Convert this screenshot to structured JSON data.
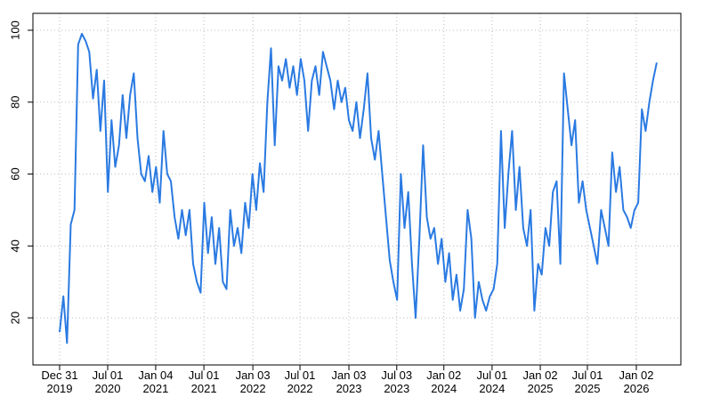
{
  "chart_data": {
    "type": "line",
    "color": "#2a7ae2",
    "grid": true,
    "values": [
      16,
      26,
      13,
      46,
      50,
      96,
      99,
      97,
      94,
      81,
      89,
      72,
      86,
      55,
      75,
      62,
      68,
      82,
      70,
      82,
      88,
      70,
      60,
      58,
      65,
      55,
      62,
      52,
      72,
      60,
      58,
      48,
      42,
      50,
      43,
      50,
      35,
      30,
      27,
      52,
      38,
      48,
      35,
      45,
      30,
      28,
      50,
      40,
      45,
      38,
      52,
      45,
      60,
      50,
      63,
      55,
      80,
      95,
      68,
      90,
      86,
      92,
      84,
      90,
      82,
      92,
      86,
      72,
      86,
      90,
      82,
      94,
      90,
      86,
      78,
      86,
      80,
      84,
      75,
      72,
      80,
      70,
      78,
      88,
      70,
      64,
      72,
      60,
      48,
      36,
      30,
      25,
      60,
      45,
      55,
      35,
      20,
      42,
      68,
      48,
      42,
      45,
      35,
      42,
      30,
      38,
      25,
      32,
      22,
      28,
      50,
      42,
      20,
      30,
      25,
      22,
      26,
      28,
      35,
      72,
      45,
      60,
      72,
      50,
      62,
      45,
      40,
      50,
      22,
      35,
      32,
      45,
      40,
      55,
      58,
      35,
      88,
      78,
      68,
      75,
      52,
      58,
      50,
      45,
      40,
      35,
      50,
      45,
      40,
      66,
      55,
      62,
      50,
      48,
      45,
      50,
      52,
      78,
      72,
      80,
      86,
      91
    ],
    "xlim": [
      -7.2,
      167.5
    ],
    "xticks": [
      {
        "value": 0,
        "label": "Dec 31\n2019"
      },
      {
        "value": 12.96,
        "label": "Jul 01\n2020"
      },
      {
        "value": 25.9,
        "label": "Jan 04\n2021"
      },
      {
        "value": 38.9,
        "label": "Jul 01\n2021"
      },
      {
        "value": 52.1,
        "label": "Jan 03\n2022"
      },
      {
        "value": 64.8,
        "label": "Jul 01\n2022"
      },
      {
        "value": 78.0,
        "label": "Jan 03\n2023"
      },
      {
        "value": 90.9,
        "label": "Jul 03\n2023"
      },
      {
        "value": 103.6,
        "label": "Jan 02\n2024"
      },
      {
        "value": 116.6,
        "label": "Jul 01\n2024"
      },
      {
        "value": 129.6,
        "label": "Jan 02\n2025"
      },
      {
        "value": 142.3,
        "label": "Jul 01\n2025"
      },
      {
        "value": 155.5,
        "label": "Jan 02\n2026"
      }
    ],
    "ylim": [
      6.9,
      104.7
    ],
    "yticks": [
      20,
      40,
      60,
      80,
      100
    ]
  }
}
